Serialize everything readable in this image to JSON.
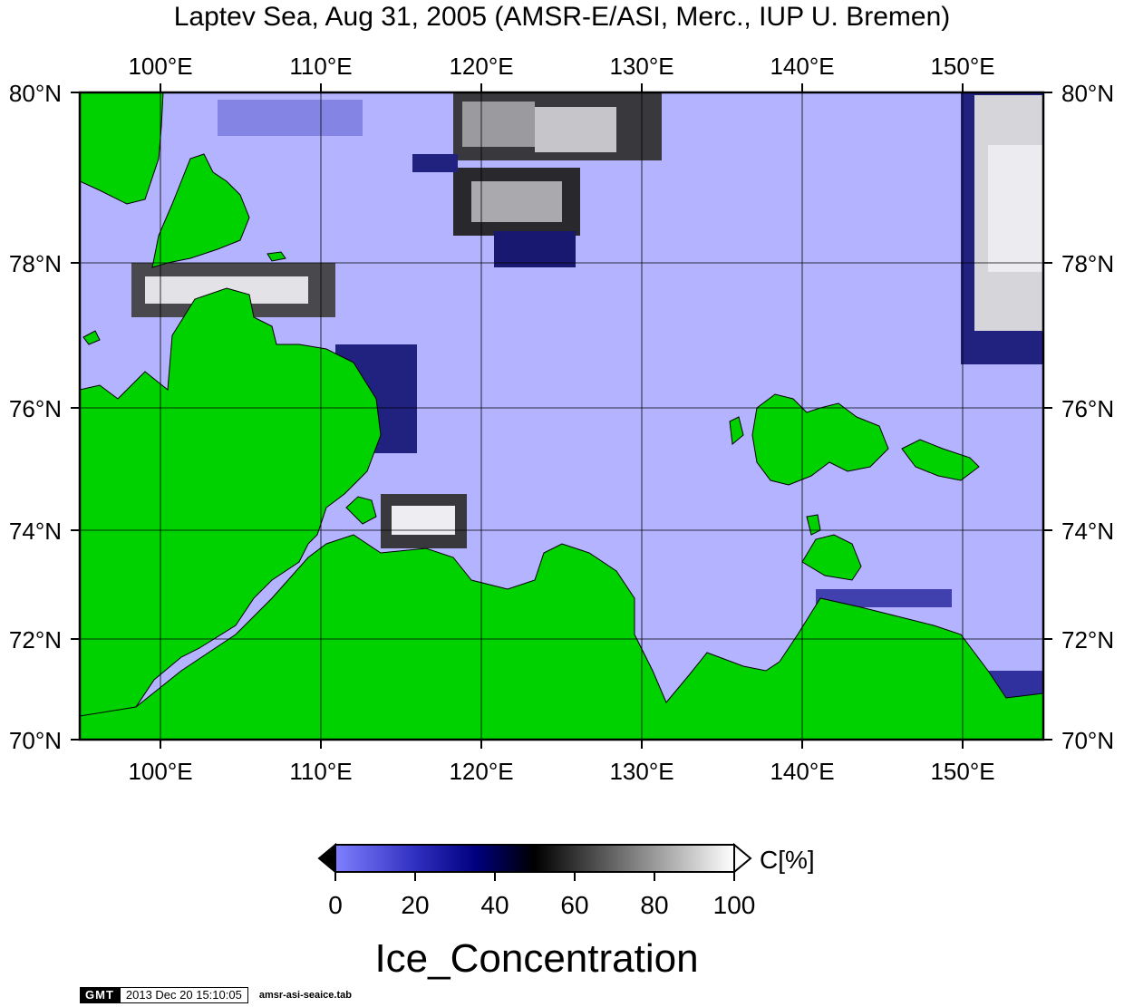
{
  "title": "Laptev Sea, Aug 31, 2005 (AMSR-E/ASI, Merc., IUP U. Bremen)",
  "map": {
    "lon_labels": [
      "100°E",
      "110°E",
      "120°E",
      "130°E",
      "140°E",
      "150°E"
    ],
    "lon_values": [
      100,
      110,
      120,
      130,
      140,
      150
    ],
    "lat_labels": [
      "80°N",
      "78°N",
      "76°N",
      "74°N",
      "72°N",
      "70°N"
    ],
    "lat_values": [
      80,
      78,
      76,
      74,
      72,
      70
    ],
    "lon_range": [
      95,
      155
    ],
    "lat_range": [
      70,
      80
    ],
    "projection": "Mercator",
    "colors": {
      "ocean": "#b3b3ff",
      "land": "#00d200",
      "grid": "#000000"
    }
  },
  "colorbar": {
    "unit": "C[%]",
    "tick_labels": [
      "0",
      "20",
      "40",
      "60",
      "80",
      "100"
    ],
    "ticks": [
      0,
      20,
      40,
      60,
      80,
      100
    ],
    "stops": [
      "#7f7fff",
      "#000080",
      "#000000",
      "#808080",
      "#ffffff"
    ],
    "under_color": "#000000",
    "over_color": "#ffffff"
  },
  "variable_label": "Ice_Concentration",
  "stamp": {
    "logo": "GMT",
    "timestamp": "2013 Dec 20 15:10:05",
    "filename": "amsr-asi-seaice.tab"
  }
}
